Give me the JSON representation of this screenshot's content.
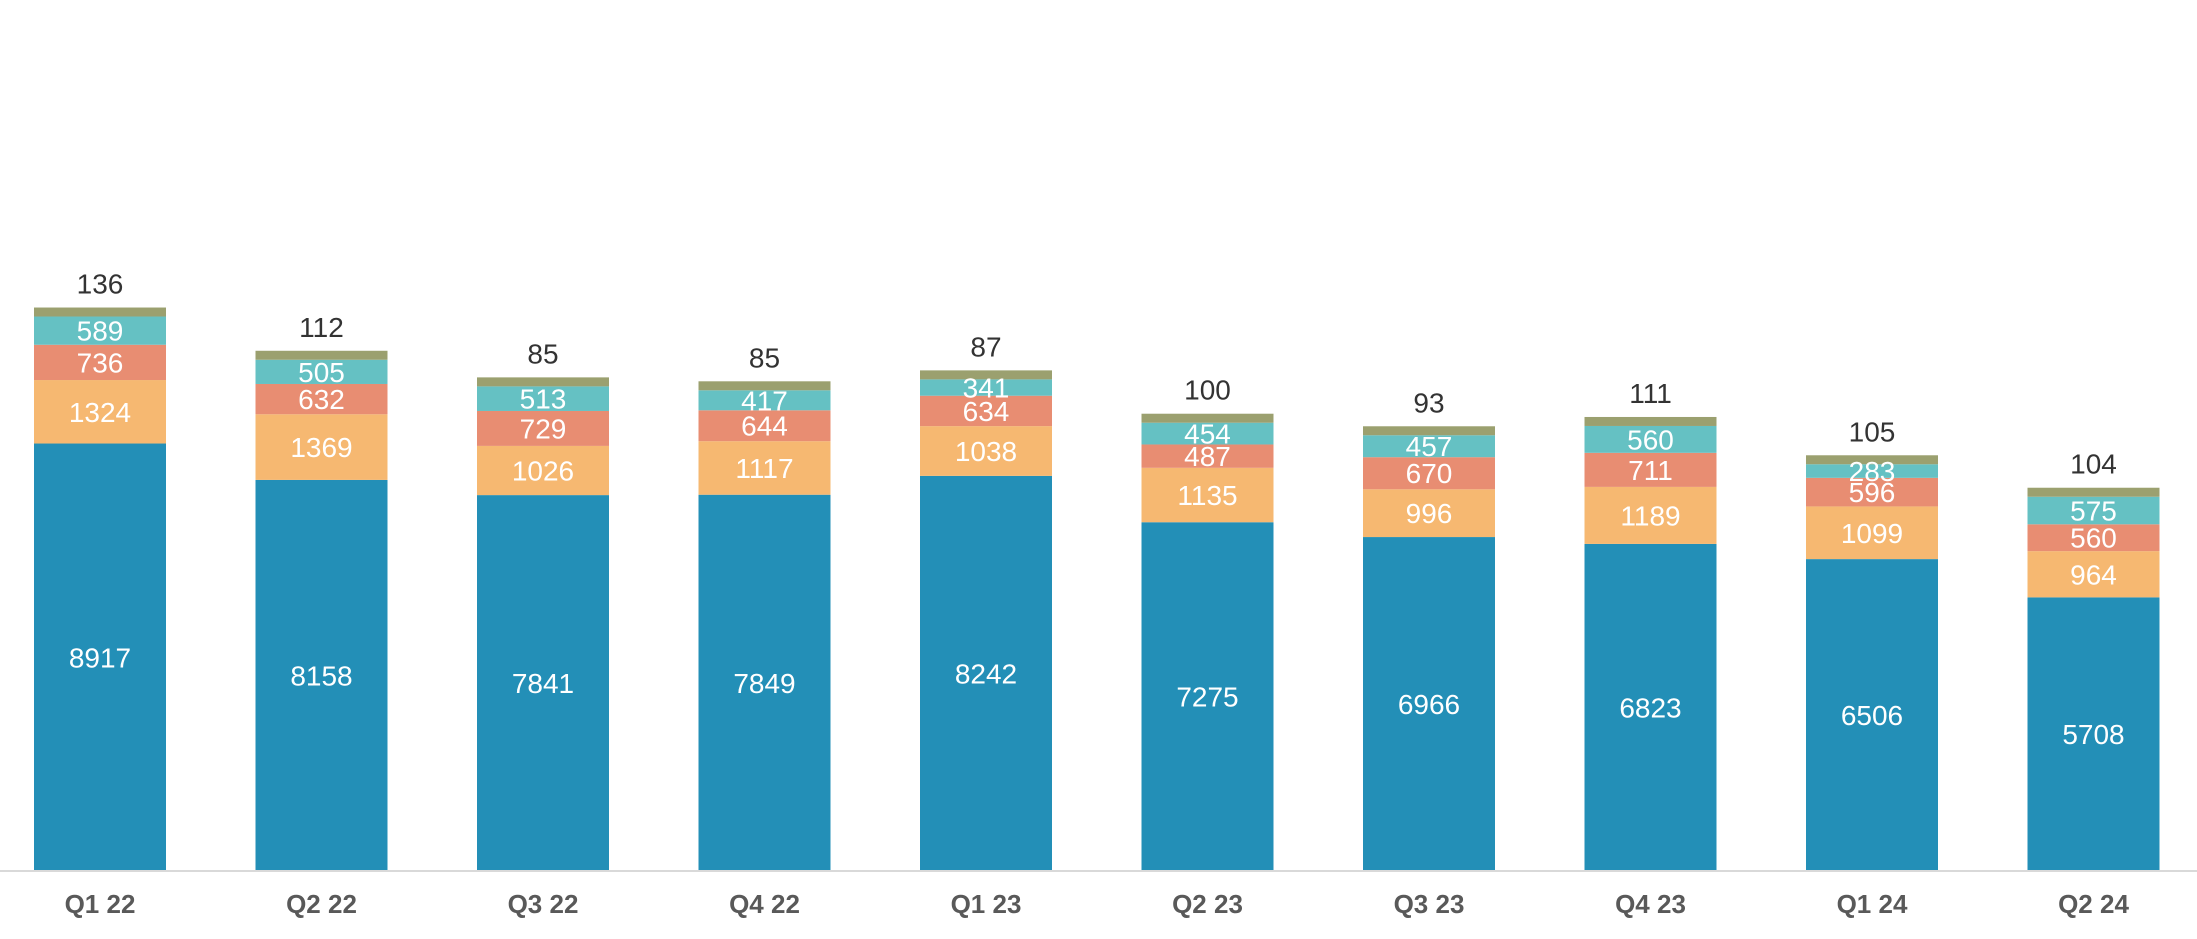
{
  "chart_data": {
    "type": "bar",
    "stacked": true,
    "categories": [
      "Q1 22",
      "Q2 22",
      "Q3 22",
      "Q4 22",
      "Q1 23",
      "Q2 23",
      "Q3 23",
      "Q4 23",
      "Q1 24",
      "Q2 24"
    ],
    "series": [
      {
        "color": "#238FB7",
        "values": [
          8917,
          8158,
          7841,
          7849,
          8242,
          7275,
          6966,
          6823,
          6506,
          5708
        ]
      },
      {
        "color": "#F6B871",
        "values": [
          1324,
          1369,
          1026,
          1117,
          1038,
          1135,
          996,
          1189,
          1099,
          964
        ]
      },
      {
        "color": "#E88D72",
        "values": [
          736,
          632,
          729,
          644,
          634,
          487,
          670,
          711,
          596,
          560
        ]
      },
      {
        "color": "#65C1C3",
        "values": [
          589,
          505,
          513,
          417,
          341,
          454,
          457,
          560,
          283,
          575
        ]
      },
      {
        "color": "#9BA06F",
        "values": [
          136,
          112,
          85,
          85,
          87,
          100,
          93,
          111,
          105,
          104
        ]
      }
    ],
    "title": "",
    "xlabel": "",
    "ylabel": "",
    "grid": false,
    "legend": "none",
    "axis_color": "#D9D9D9",
    "label_color_inside": "#FFFFFF",
    "label_color_top": "#333333",
    "category_label_color": "#595959"
  }
}
